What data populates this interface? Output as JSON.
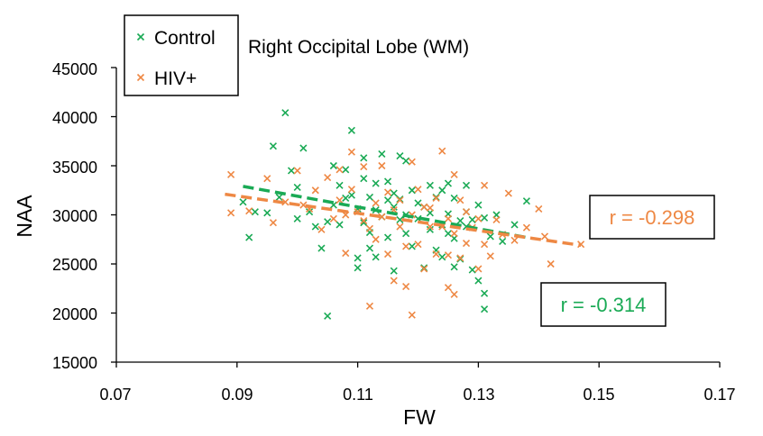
{
  "chart_data": {
    "type": "scatter",
    "title": "Right Occipital Lobe (WM)",
    "xlabel": "FW",
    "ylabel": "NAA",
    "xlim": [
      0.07,
      0.17
    ],
    "ylim": [
      15000,
      45000
    ],
    "x_ticks": [
      "0.07",
      "0.09",
      "0.11",
      "0.13",
      "0.15",
      "0.17"
    ],
    "y_ticks": [
      "15000",
      "20000",
      "25000",
      "30000",
      "35000",
      "40000",
      "45000"
    ],
    "legend": [
      "Control",
      "HIV+"
    ],
    "series": [
      {
        "name": "Control",
        "color": "#1aaa55",
        "marker": "x",
        "points": [
          [
            0.091,
            31300
          ],
          [
            0.092,
            27700
          ],
          [
            0.093,
            30300
          ],
          [
            0.095,
            30200
          ],
          [
            0.096,
            37000
          ],
          [
            0.097,
            31800
          ],
          [
            0.098,
            40400
          ],
          [
            0.099,
            34500
          ],
          [
            0.1,
            29600
          ],
          [
            0.1,
            32800
          ],
          [
            0.101,
            36800
          ],
          [
            0.102,
            30300
          ],
          [
            0.103,
            28800
          ],
          [
            0.104,
            26600
          ],
          [
            0.105,
            29300
          ],
          [
            0.105,
            19700
          ],
          [
            0.106,
            35000
          ],
          [
            0.106,
            31000
          ],
          [
            0.107,
            33000
          ],
          [
            0.107,
            29000
          ],
          [
            0.108,
            31700
          ],
          [
            0.108,
            34600
          ],
          [
            0.109,
            38600
          ],
          [
            0.109,
            32000
          ],
          [
            0.11,
            30600
          ],
          [
            0.11,
            25600
          ],
          [
            0.11,
            24600
          ],
          [
            0.111,
            35800
          ],
          [
            0.111,
            33700
          ],
          [
            0.111,
            29200
          ],
          [
            0.112,
            31800
          ],
          [
            0.112,
            28200
          ],
          [
            0.112,
            26600
          ],
          [
            0.113,
            30500
          ],
          [
            0.113,
            33200
          ],
          [
            0.113,
            25700
          ],
          [
            0.114,
            36200
          ],
          [
            0.114,
            29800
          ],
          [
            0.115,
            31500
          ],
          [
            0.115,
            33400
          ],
          [
            0.115,
            27700
          ],
          [
            0.116,
            30800
          ],
          [
            0.116,
            32200
          ],
          [
            0.116,
            24300
          ],
          [
            0.117,
            36000
          ],
          [
            0.117,
            29500
          ],
          [
            0.117,
            31600
          ],
          [
            0.118,
            35500
          ],
          [
            0.118,
            28100
          ],
          [
            0.118,
            30000
          ],
          [
            0.119,
            32500
          ],
          [
            0.119,
            26800
          ],
          [
            0.12,
            31200
          ],
          [
            0.12,
            29600
          ],
          [
            0.121,
            30800
          ],
          [
            0.121,
            24600
          ],
          [
            0.122,
            33000
          ],
          [
            0.122,
            28500
          ],
          [
            0.122,
            30200
          ],
          [
            0.123,
            26400
          ],
          [
            0.123,
            31800
          ],
          [
            0.124,
            32500
          ],
          [
            0.124,
            29000
          ],
          [
            0.124,
            25700
          ],
          [
            0.125,
            28100
          ],
          [
            0.125,
            33200
          ],
          [
            0.125,
            30100
          ],
          [
            0.126,
            27600
          ],
          [
            0.126,
            31700
          ],
          [
            0.126,
            24700
          ],
          [
            0.127,
            29400
          ],
          [
            0.127,
            25500
          ],
          [
            0.128,
            33000
          ],
          [
            0.128,
            30300
          ],
          [
            0.128,
            28800
          ],
          [
            0.129,
            29500
          ],
          [
            0.129,
            24400
          ],
          [
            0.13,
            31000
          ],
          [
            0.13,
            23300
          ],
          [
            0.131,
            29700
          ],
          [
            0.131,
            22000
          ],
          [
            0.131,
            20400
          ],
          [
            0.132,
            27800
          ],
          [
            0.133,
            30000
          ],
          [
            0.134,
            27300
          ],
          [
            0.136,
            29000
          ],
          [
            0.138,
            31400
          ]
        ],
        "trend": {
          "x": [
            0.091,
            0.138
          ],
          "y": [
            32900,
            27700
          ]
        },
        "r_label": "r = -0.314"
      },
      {
        "name": "HIV+",
        "color": "#ee8844",
        "marker": "x",
        "points": [
          [
            0.089,
            34100
          ],
          [
            0.089,
            30200
          ],
          [
            0.092,
            30400
          ],
          [
            0.095,
            33700
          ],
          [
            0.096,
            29200
          ],
          [
            0.098,
            31300
          ],
          [
            0.1,
            34500
          ],
          [
            0.101,
            31000
          ],
          [
            0.102,
            30600
          ],
          [
            0.103,
            32500
          ],
          [
            0.104,
            28500
          ],
          [
            0.105,
            33800
          ],
          [
            0.106,
            29600
          ],
          [
            0.107,
            34600
          ],
          [
            0.107,
            31500
          ],
          [
            0.108,
            30000
          ],
          [
            0.108,
            26100
          ],
          [
            0.109,
            32600
          ],
          [
            0.109,
            36400
          ],
          [
            0.11,
            30300
          ],
          [
            0.111,
            29400
          ],
          [
            0.111,
            34900
          ],
          [
            0.112,
            28600
          ],
          [
            0.112,
            20700
          ],
          [
            0.113,
            31200
          ],
          [
            0.113,
            27500
          ],
          [
            0.114,
            35000
          ],
          [
            0.114,
            29800
          ],
          [
            0.115,
            32300
          ],
          [
            0.115,
            26000
          ],
          [
            0.116,
            30500
          ],
          [
            0.116,
            23300
          ],
          [
            0.117,
            28800
          ],
          [
            0.117,
            31500
          ],
          [
            0.118,
            26800
          ],
          [
            0.118,
            22700
          ],
          [
            0.119,
            35400
          ],
          [
            0.119,
            30000
          ],
          [
            0.119,
            19800
          ],
          [
            0.12,
            32600
          ],
          [
            0.12,
            27000
          ],
          [
            0.121,
            30800
          ],
          [
            0.121,
            24500
          ],
          [
            0.122,
            28800
          ],
          [
            0.122,
            30700
          ],
          [
            0.123,
            26000
          ],
          [
            0.123,
            31700
          ],
          [
            0.124,
            28800
          ],
          [
            0.124,
            36500
          ],
          [
            0.125,
            25900
          ],
          [
            0.125,
            29600
          ],
          [
            0.125,
            22600
          ],
          [
            0.126,
            34100
          ],
          [
            0.126,
            21900
          ],
          [
            0.126,
            28100
          ],
          [
            0.127,
            31500
          ],
          [
            0.127,
            25600
          ],
          [
            0.128,
            30300
          ],
          [
            0.128,
            27100
          ],
          [
            0.129,
            28700
          ],
          [
            0.13,
            29600
          ],
          [
            0.13,
            24500
          ],
          [
            0.131,
            33000
          ],
          [
            0.131,
            27000
          ],
          [
            0.132,
            25800
          ],
          [
            0.133,
            29500
          ],
          [
            0.134,
            28000
          ],
          [
            0.135,
            32200
          ],
          [
            0.136,
            27400
          ],
          [
            0.138,
            28700
          ],
          [
            0.14,
            30600
          ],
          [
            0.141,
            27800
          ],
          [
            0.142,
            25000
          ],
          [
            0.147,
            27000
          ]
        ],
        "trend": {
          "x": [
            0.088,
            0.147
          ],
          "y": [
            32100,
            26900
          ]
        },
        "r_label": "r = -0.298"
      }
    ]
  }
}
